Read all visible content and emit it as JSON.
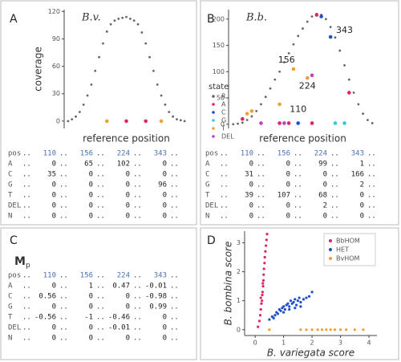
{
  "panel_labels": [
    "A",
    "B",
    "C",
    "D"
  ],
  "chart_data": [
    {
      "type": "line",
      "title": "B.v.",
      "ylabel": "coverage",
      "xlabel": "reference position",
      "xlim": [
        -1,
        31
      ],
      "ylim": [
        -8,
        122
      ],
      "yticks": [
        0,
        30,
        60,
        90,
        120
      ],
      "x": [
        0,
        1,
        2,
        3,
        4,
        5,
        6,
        7,
        8,
        9,
        10,
        11,
        12,
        13,
        14,
        15,
        16,
        17,
        18,
        19,
        20,
        21,
        22,
        23,
        24,
        25,
        26,
        27,
        28,
        29,
        30
      ],
      "series": [
        {
          "color": "#666666",
          "values": [
            0,
            2,
            5,
            10,
            18,
            28,
            40,
            55,
            70,
            85,
            98,
            106,
            110,
            112,
            113,
            114,
            112,
            110,
            106,
            97,
            85,
            70,
            55,
            40,
            28,
            18,
            10,
            5,
            2,
            1,
            0
          ]
        }
      ],
      "markers": {
        "x": [
          10,
          15,
          20,
          24
        ],
        "y": [
          0,
          0,
          0,
          0
        ],
        "colors": [
          "#f0a030",
          "#e0245e",
          "#e0245e",
          "#f0a030"
        ]
      }
    },
    {
      "type": "line",
      "title": "B.b.",
      "xlabel": "reference position",
      "xlim": [
        -1,
        31
      ],
      "ylim": [
        -8,
        218
      ],
      "yticks": [
        0,
        50,
        100,
        150,
        200
      ],
      "x": [
        0,
        1,
        2,
        3,
        4,
        5,
        6,
        7,
        8,
        9,
        10,
        11,
        12,
        13,
        14,
        15,
        16,
        17,
        18,
        19,
        20,
        21,
        22,
        23,
        24,
        25,
        26,
        27,
        28,
        29,
        30
      ],
      "series": [
        {
          "color": "#666666",
          "values": [
            0,
            1,
            3,
            8,
            15,
            25,
            38,
            52,
            68,
            85,
            100,
            118,
            135,
            152,
            168,
            182,
            195,
            205,
            210,
            208,
            200,
            185,
            165,
            140,
            112,
            85,
            60,
            38,
            20,
            8,
            2
          ]
        }
      ],
      "legend_title": "state",
      "legend": [
        {
          "name": "R",
          "color": "#666666"
        },
        {
          "name": "A",
          "color": "#e0245e"
        },
        {
          "name": "C",
          "color": "#1f4fc9"
        },
        {
          "name": "G",
          "color": "#38c8d8"
        },
        {
          "name": "T",
          "color": "#f0a030"
        },
        {
          "name": "DEL",
          "color": "#c040c0"
        }
      ],
      "markers": {
        "x": [
          2,
          3,
          4,
          10,
          13,
          16,
          17,
          18,
          19,
          21,
          25,
          6,
          10,
          11,
          12,
          14,
          17,
          22,
          24
        ],
        "y": [
          10,
          20,
          25,
          38,
          105,
          88,
          93,
          208,
          205,
          166,
          60,
          2,
          2,
          2,
          2,
          2,
          2,
          2,
          2
        ],
        "colors": [
          "#e0245e",
          "#f0a030",
          "#f0a030",
          "#f0a030",
          "#f0a030",
          "#f0a030",
          "#c040c0",
          "#e0245e",
          "#1f4fc9",
          "#1f4fc9",
          "#e0245e",
          "#c040c0",
          "#e0245e",
          "#c040c0",
          "#e0245e",
          "#1f4fc9",
          "#e0245e",
          "#38c8d8",
          "#38c8d8"
        ]
      },
      "annotations": [
        {
          "text": 156,
          "x": 11.5,
          "y": 122
        },
        {
          "text": 224,
          "x": 16,
          "y": 72
        },
        {
          "text": 110,
          "x": 14,
          "y": 28
        },
        {
          "text": 343,
          "x": 24,
          "y": 178
        }
      ]
    },
    {
      "type": "scatter",
      "xlabel": "B. variegata score",
      "ylabel": "B. bombina score",
      "xlim": [
        -0.37,
        4.28
      ],
      "ylim": [
        -0.2,
        3.4
      ],
      "xticks": [
        0,
        1,
        2,
        3,
        4
      ],
      "yticks": [
        0,
        1,
        2,
        3
      ],
      "series": [
        {
          "name": "BbHOM",
          "color": "#e0245e",
          "x": [
            0.1,
            0.15,
            0.18,
            0.2,
            0.22,
            0.24,
            0.25,
            0.26,
            0.28,
            0.29,
            0.3,
            0.31,
            0.33,
            0.34,
            0.36,
            0.38,
            0.4,
            0.42,
            0.2,
            0.27
          ],
          "values": [
            0.1,
            0.3,
            0.5,
            0.7,
            0.9,
            1.0,
            1.2,
            1.3,
            1.5,
            1.7,
            1.9,
            2.1,
            2.3,
            2.5,
            2.7,
            2.9,
            3.1,
            3.3,
            1.1,
            1.6
          ]
        },
        {
          "name": "HET",
          "color": "#1f4fc9",
          "x": [
            0.5,
            0.6,
            0.7,
            0.75,
            0.8,
            0.85,
            0.9,
            0.95,
            1.0,
            1.05,
            1.1,
            1.15,
            1.2,
            1.25,
            1.3,
            1.35,
            1.4,
            1.45,
            1.5,
            1.55,
            1.6,
            1.7,
            1.8,
            1.9,
            2.0,
            0.65,
            1.0,
            1.2,
            1.4,
            1.6
          ],
          "values": [
            0.35,
            0.45,
            0.5,
            0.6,
            0.55,
            0.7,
            0.65,
            0.75,
            0.8,
            0.7,
            0.85,
            0.9,
            0.8,
            1.0,
            0.9,
            0.95,
            1.05,
            0.85,
            1.0,
            1.1,
            0.95,
            1.05,
            1.1,
            1.15,
            1.3,
            0.4,
            0.6,
            0.7,
            0.75,
            0.8
          ]
        },
        {
          "name": "BvHOM",
          "color": "#f0a030",
          "x": [
            0.5,
            1.6,
            1.8,
            2.0,
            2.2,
            2.35,
            2.5,
            2.65,
            2.8,
            3.0,
            3.2,
            3.5,
            3.8
          ],
          "values": [
            0,
            0,
            0,
            0,
            0,
            0,
            0,
            0,
            0,
            0,
            0,
            0,
            0
          ]
        }
      ]
    }
  ],
  "separator": "..",
  "tables": [
    {
      "header": [
        "pos",
        110,
        156,
        224,
        343
      ],
      "rows": [
        [
          "A",
          0,
          65,
          102,
          0
        ],
        [
          "C",
          35,
          0,
          0,
          0
        ],
        [
          "G",
          0,
          0,
          0,
          96
        ],
        [
          "T",
          0,
          0,
          0,
          0
        ],
        [
          "DEL",
          0,
          0,
          0,
          0
        ],
        [
          "N",
          0,
          0,
          0,
          0
        ]
      ]
    },
    {
      "header": [
        "pos",
        110,
        156,
        224,
        343
      ],
      "rows": [
        [
          "A",
          0,
          0,
          99,
          1
        ],
        [
          "C",
          31,
          0,
          0,
          166
        ],
        [
          "G",
          0,
          0,
          0,
          2
        ],
        [
          "T",
          39,
          107,
          68,
          0
        ],
        [
          "DEL",
          0,
          0,
          2,
          0
        ],
        [
          "N",
          0,
          0,
          0,
          0
        ]
      ]
    },
    {
      "title": "M",
      "title_sub": "p",
      "header": [
        "pos",
        110,
        156,
        224,
        343
      ],
      "rows": [
        [
          "A",
          0,
          1,
          0.47,
          -0.01
        ],
        [
          "C",
          0.56,
          0,
          0,
          -0.98
        ],
        [
          "G",
          0,
          0,
          0,
          0.99
        ],
        [
          "T",
          -0.56,
          -1,
          -0.46,
          0
        ],
        [
          "DEL",
          0,
          0,
          -0.01,
          0
        ],
        [
          "N",
          0,
          0,
          0,
          0
        ]
      ]
    }
  ]
}
